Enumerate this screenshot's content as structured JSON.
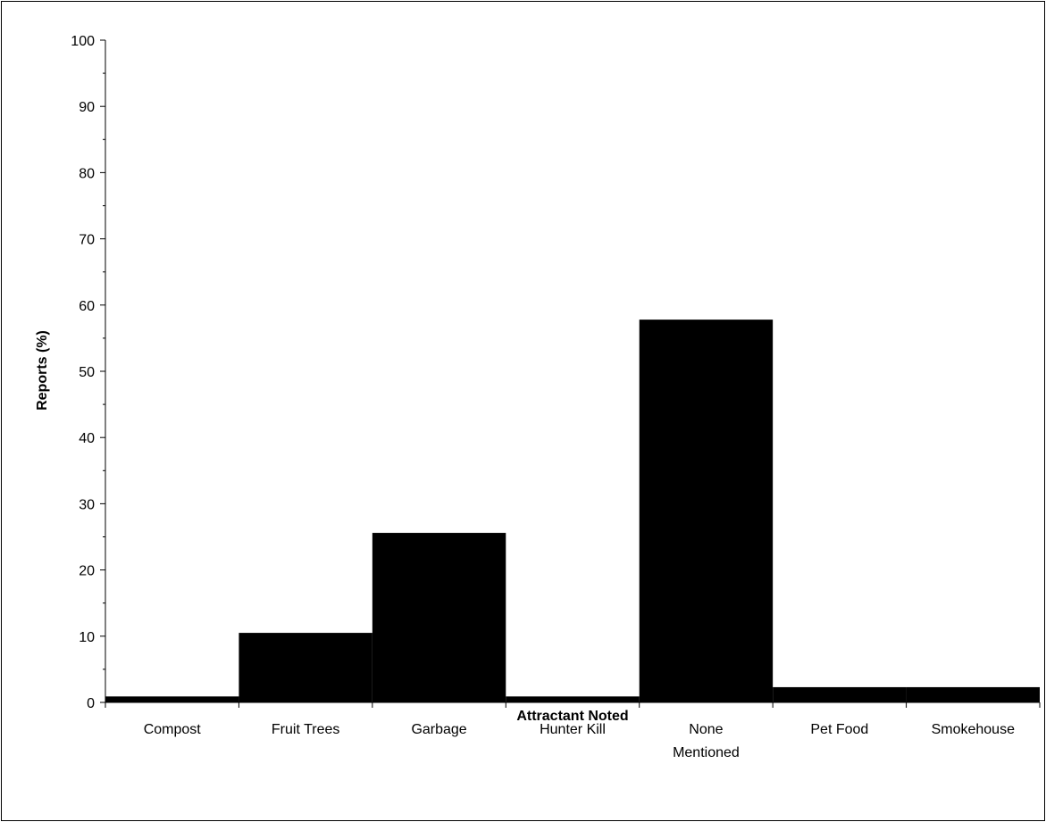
{
  "chart_data": {
    "type": "bar",
    "title": "",
    "xlabel": "Attractant Noted",
    "ylabel": "Reports (%)",
    "categories": [
      [
        "Compost"
      ],
      [
        "Fruit Trees"
      ],
      [
        "Garbage"
      ],
      [
        "Hunter Kill"
      ],
      [
        "None",
        "Mentioned"
      ],
      [
        "Pet Food"
      ],
      [
        "Smokehouse"
      ]
    ],
    "values": [
      0.9,
      10.5,
      25.6,
      0.9,
      57.8,
      2.3,
      2.3
    ],
    "ylim": [
      0,
      100
    ],
    "yticks": [
      0,
      10,
      20,
      30,
      40,
      50,
      60,
      70,
      80,
      90,
      100
    ],
    "bar_color": "#000000",
    "grid": false,
    "legend": "none"
  }
}
